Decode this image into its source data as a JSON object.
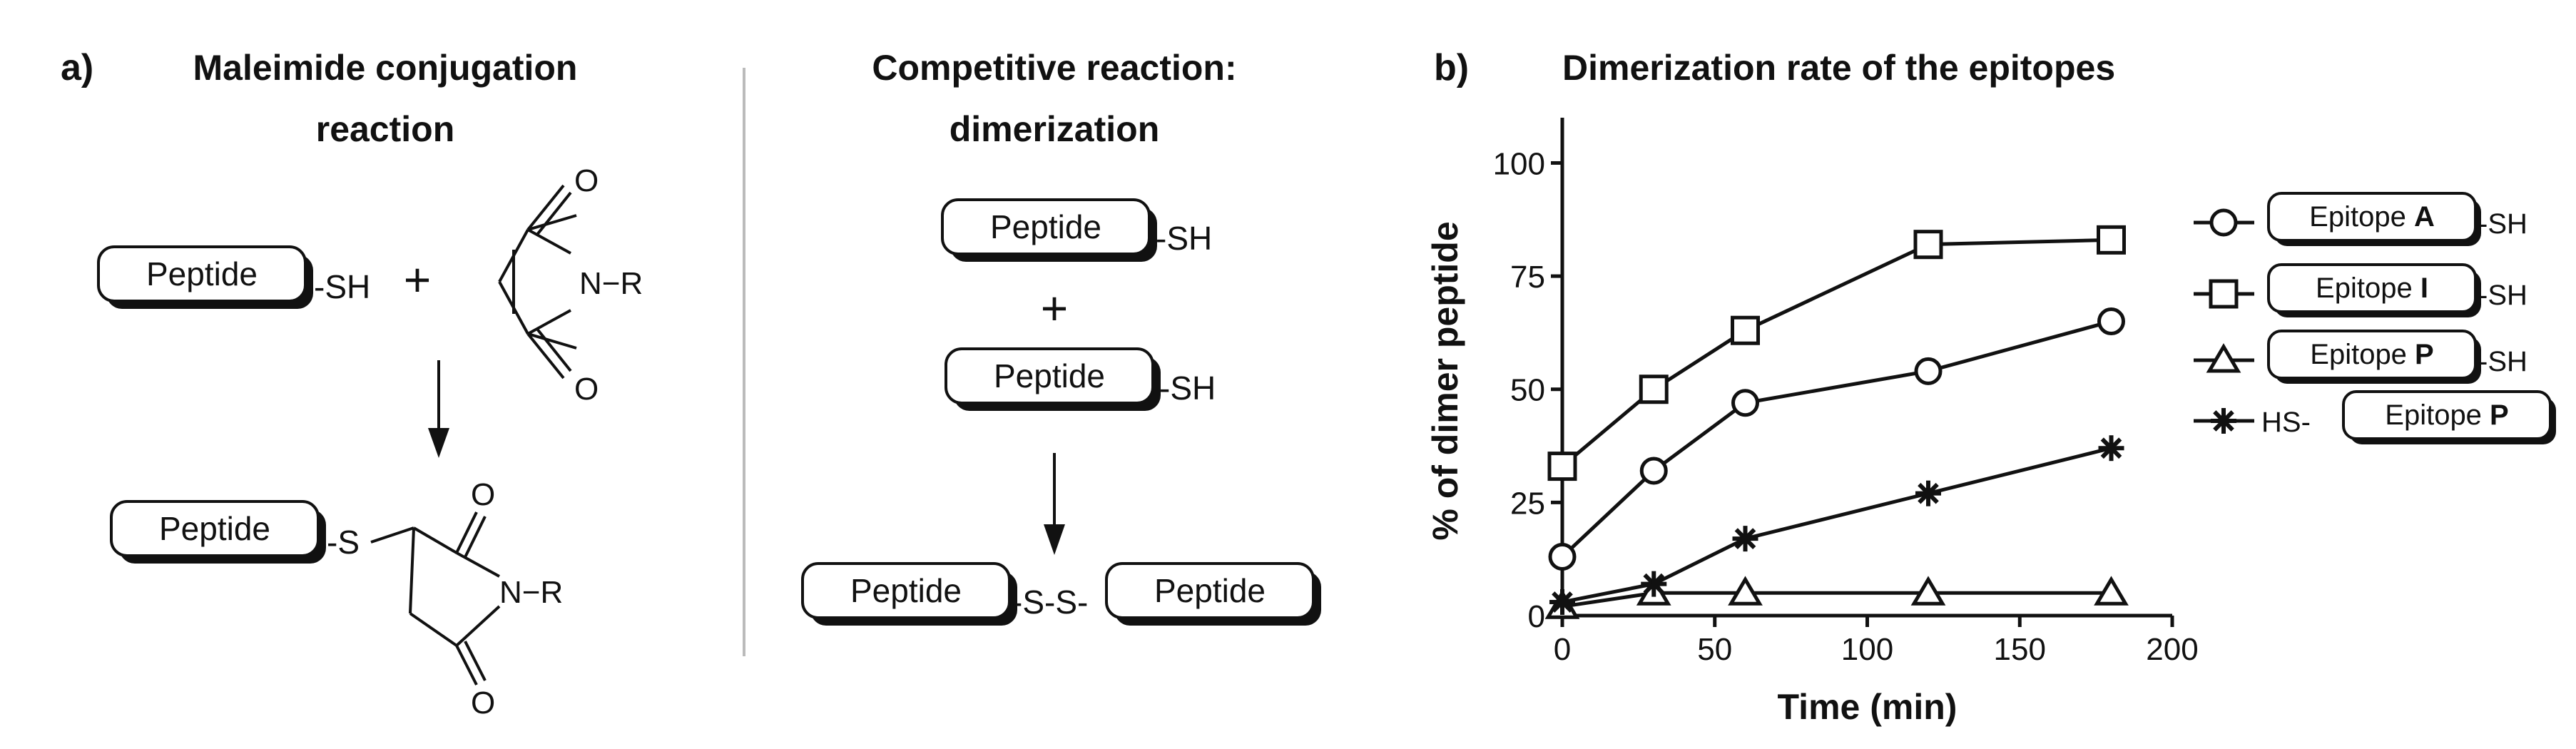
{
  "panel_a": {
    "label": "a)",
    "left_title_line1": "Maleimide conjugation",
    "left_title_line2": "reaction",
    "right_title_line1": "Competitive reaction:",
    "right_title_line2": "dimerization",
    "peptide": "Peptide",
    "sh": "-SH",
    "plus": "+",
    "s": "-S",
    "ss": "-S-S-",
    "o": "O",
    "n_r": "N−R"
  },
  "panel_b": {
    "label": "b)"
  },
  "chart_data": {
    "type": "line",
    "title": "Dimerization rate of the epitopes",
    "xlabel": "Time (min)",
    "ylabel": "% of dimer peptide",
    "xlim": [
      0,
      200
    ],
    "ylim": [
      0,
      110
    ],
    "xticks": [
      "0",
      "50",
      "100",
      "150",
      "200"
    ],
    "yticks": [
      "0",
      "25",
      "50",
      "75",
      "100"
    ],
    "legend_position": "right",
    "series": [
      {
        "marker": "circle",
        "legend_box": "Epitope ",
        "legend_bold": "A",
        "legend_prefix": "",
        "legend_suffix": "-SH",
        "x": [
          0,
          30,
          60,
          120,
          180
        ],
        "y": [
          13,
          32,
          47,
          54,
          65
        ]
      },
      {
        "marker": "square",
        "legend_box": "Epitope ",
        "legend_bold": "I",
        "legend_prefix": "",
        "legend_suffix": "-SH",
        "x": [
          0,
          30,
          60,
          120,
          180
        ],
        "y": [
          33,
          50,
          63,
          82,
          83
        ]
      },
      {
        "marker": "triangle",
        "legend_box": "Epitope ",
        "legend_bold": "P",
        "legend_prefix": "",
        "legend_suffix": "-SH",
        "x": [
          0,
          30,
          60,
          120,
          180
        ],
        "y": [
          2,
          5,
          5,
          5,
          5
        ]
      },
      {
        "marker": "star",
        "legend_box": "Epitope ",
        "legend_bold": "P",
        "legend_prefix": "HS-",
        "legend_suffix": "",
        "x": [
          0,
          30,
          60,
          120,
          180
        ],
        "y": [
          3,
          7,
          17,
          27,
          37
        ]
      }
    ]
  }
}
